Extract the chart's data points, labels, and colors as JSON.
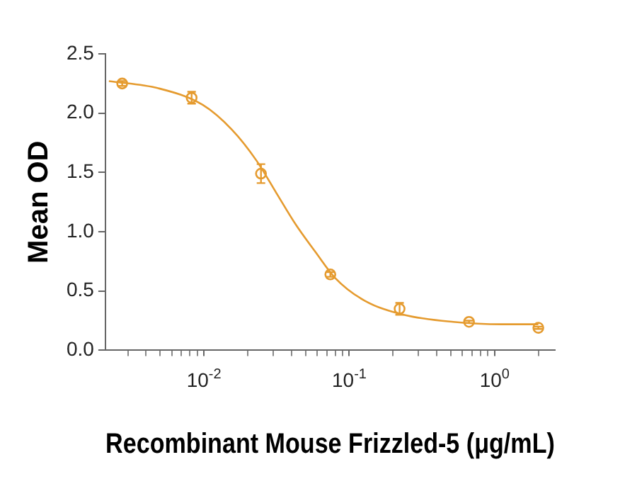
{
  "chart_data": {
    "type": "scatter",
    "xlabel": "Recombinant Mouse Frizzled-5 (μg/mL)",
    "ylabel": "Mean OD",
    "log": "x",
    "grid": false,
    "legend": false,
    "xlim": [
      0.0021,
      2.6
    ],
    "xticks": [
      {
        "value": 0.003,
        "label": null
      },
      {
        "value": 0.004,
        "label": null
      },
      {
        "value": 0.005,
        "label": null
      },
      {
        "value": 0.006,
        "label": null
      },
      {
        "value": 0.007,
        "label": null
      },
      {
        "value": 0.008,
        "label": null
      },
      {
        "value": 0.009,
        "label": null
      },
      {
        "value": 0.01,
        "label": "10$^{-2}$"
      },
      {
        "value": 0.02,
        "label": null
      },
      {
        "value": 0.03,
        "label": null
      },
      {
        "value": 0.04,
        "label": null
      },
      {
        "value": 0.05,
        "label": null
      },
      {
        "value": 0.06,
        "label": null
      },
      {
        "value": 0.07,
        "label": null
      },
      {
        "value": 0.08,
        "label": null
      },
      {
        "value": 0.09,
        "label": null
      },
      {
        "value": 0.1,
        "label": "10$^{-1}$"
      },
      {
        "value": 0.2,
        "label": null
      },
      {
        "value": 0.3,
        "label": null
      },
      {
        "value": 0.4,
        "label": null
      },
      {
        "value": 0.5,
        "label": null
      },
      {
        "value": 0.6,
        "label": null
      },
      {
        "value": 0.7,
        "label": null
      },
      {
        "value": 0.8,
        "label": null
      },
      {
        "value": 0.9,
        "label": null
      },
      {
        "value": 1,
        "label": "10$^{0}$"
      },
      {
        "value": 2,
        "label": null
      }
    ],
    "ylim": [
      0,
      2.5
    ],
    "yticks": [
      {
        "value": 0,
        "label": "0.0"
      },
      {
        "value": 0.5,
        "label": "0.5"
      },
      {
        "value": 1,
        "label": "1.0"
      },
      {
        "value": 1.5,
        "label": "1.5"
      },
      {
        "value": 2,
        "label": "2.0"
      },
      {
        "value": 2.5,
        "label": "2.5"
      }
    ],
    "series": [
      {
        "type": "line",
        "color": "#e59b2f",
        "marker": "none",
        "line_style": "solid",
        "x": [
          0.00222,
          0.00485,
          0.0098,
          0.0156,
          0.023,
          0.0314,
          0.0429,
          0.0585,
          0.08,
          0.127,
          0.237,
          0.52,
          1.12,
          2.0
        ],
        "values": [
          2.27,
          2.21,
          2.07,
          1.86,
          1.6,
          1.33,
          1.06,
          0.83,
          0.61,
          0.42,
          0.3,
          0.24,
          0.22,
          0.22
        ]
      },
      {
        "type": "scatter",
        "color": "#e59b2f",
        "marker": "circle",
        "x": [
          0.00274,
          0.00823,
          0.0247,
          0.0741,
          0.222,
          0.667,
          2.0
        ],
        "values": [
          2.25,
          2.13,
          1.49,
          0.64,
          0.35,
          0.24,
          0.19
        ],
        "errors": [
          0.02,
          0.05,
          0.08,
          0.02,
          0.05,
          0.01,
          0.01
        ]
      }
    ]
  }
}
